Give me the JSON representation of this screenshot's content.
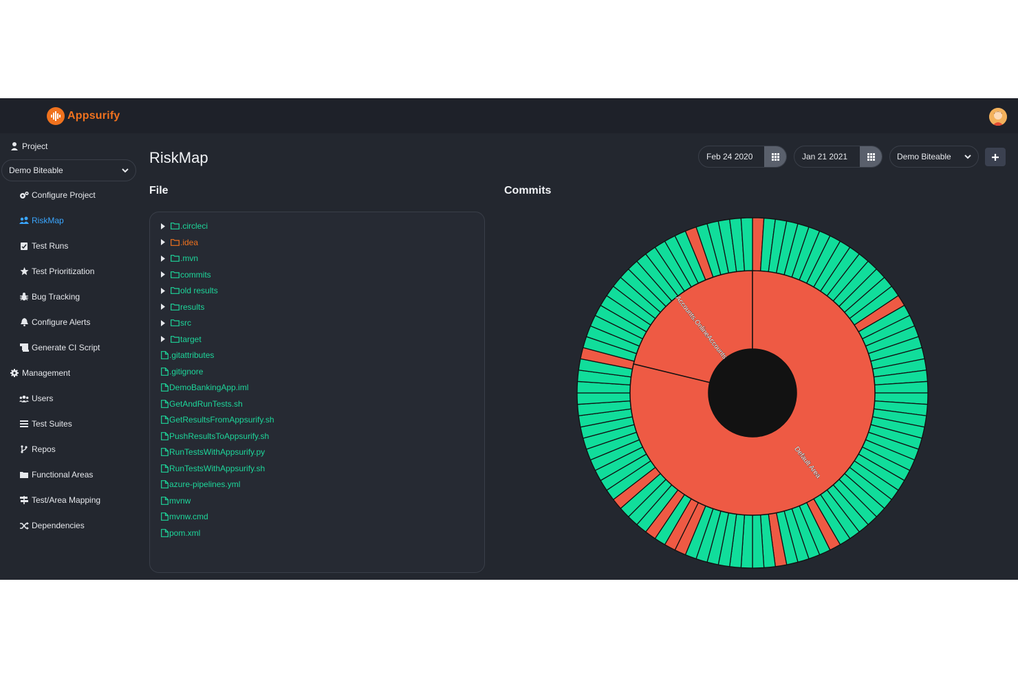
{
  "brand": {
    "name": "Appsurify"
  },
  "sidebar": {
    "project_label": "Project",
    "selected_project": "Demo Biteable",
    "items": [
      {
        "label": "Configure Project",
        "icon": "cogs-icon"
      },
      {
        "label": "RiskMap",
        "icon": "users-map-icon",
        "active": true
      },
      {
        "label": "Test Runs",
        "icon": "clipboard-check-icon"
      },
      {
        "label": "Test Prioritization",
        "icon": "star-icon"
      },
      {
        "label": "Bug Tracking",
        "icon": "bug-icon"
      },
      {
        "label": "Configure Alerts",
        "icon": "bell-icon"
      },
      {
        "label": "Generate CI Script",
        "icon": "scroll-icon"
      }
    ],
    "management_label": "Management",
    "management_items": [
      {
        "label": "Users",
        "icon": "users-icon"
      },
      {
        "label": "Test Suites",
        "icon": "list-icon"
      },
      {
        "label": "Repos",
        "icon": "code-branch-icon"
      },
      {
        "label": "Functional Areas",
        "icon": "folder-icon"
      },
      {
        "label": "Test/Area Mapping",
        "icon": "signs-icon"
      },
      {
        "label": "Dependencies",
        "icon": "random-icon"
      }
    ]
  },
  "header": {
    "page_title": "RiskMap",
    "start_date": "Feb 24 2020",
    "end_date": "Jan 21 2021",
    "repo": "Demo Biteable"
  },
  "file_section": {
    "title": "File",
    "entries": [
      {
        "name": ".circleci",
        "type": "folder"
      },
      {
        "name": ".idea",
        "type": "folder",
        "highlight": "orange"
      },
      {
        "name": ".mvn",
        "type": "folder"
      },
      {
        "name": "commits",
        "type": "folder"
      },
      {
        "name": "old results",
        "type": "folder"
      },
      {
        "name": "results",
        "type": "folder"
      },
      {
        "name": "src",
        "type": "folder"
      },
      {
        "name": "target",
        "type": "folder"
      },
      {
        "name": ".gitattributes",
        "type": "file"
      },
      {
        "name": ".gitignore",
        "type": "file"
      },
      {
        "name": "DemoBankingApp.iml",
        "type": "file"
      },
      {
        "name": "GetAndRunTests.sh",
        "type": "file"
      },
      {
        "name": "GetResultsFromAppsurify.sh",
        "type": "file"
      },
      {
        "name": "PushResultsToAppsurify.sh",
        "type": "file"
      },
      {
        "name": "RunTestsWithAppsurify.py",
        "type": "file"
      },
      {
        "name": "RunTestsWithAppsurify.sh",
        "type": "file"
      },
      {
        "name": "azure-pipelines.yml",
        "type": "file"
      },
      {
        "name": "mvnw",
        "type": "file"
      },
      {
        "name": "mvnw.cmd",
        "type": "file"
      },
      {
        "name": "pom.xml",
        "type": "file"
      }
    ]
  },
  "commits_section": {
    "title": "Commits"
  },
  "colors": {
    "risk": "#ee5a44",
    "ok": "#11dd9b",
    "accent": "#f0721e",
    "link": "#1dd69a",
    "active": "#3aa6ff"
  },
  "chart_data": {
    "type": "sunburst",
    "inner_ring": [
      {
        "label": "Accounts.OnlineAccounts",
        "share": 0.212,
        "status": "risk"
      },
      {
        "label": "Default Area",
        "share": 0.788,
        "status": "risk"
      }
    ],
    "outer_ring_commits": 96,
    "outer_ring_risk_indices": [
      0,
      15,
      40,
      45,
      54,
      55,
      57,
      61,
      75,
      90
    ]
  }
}
